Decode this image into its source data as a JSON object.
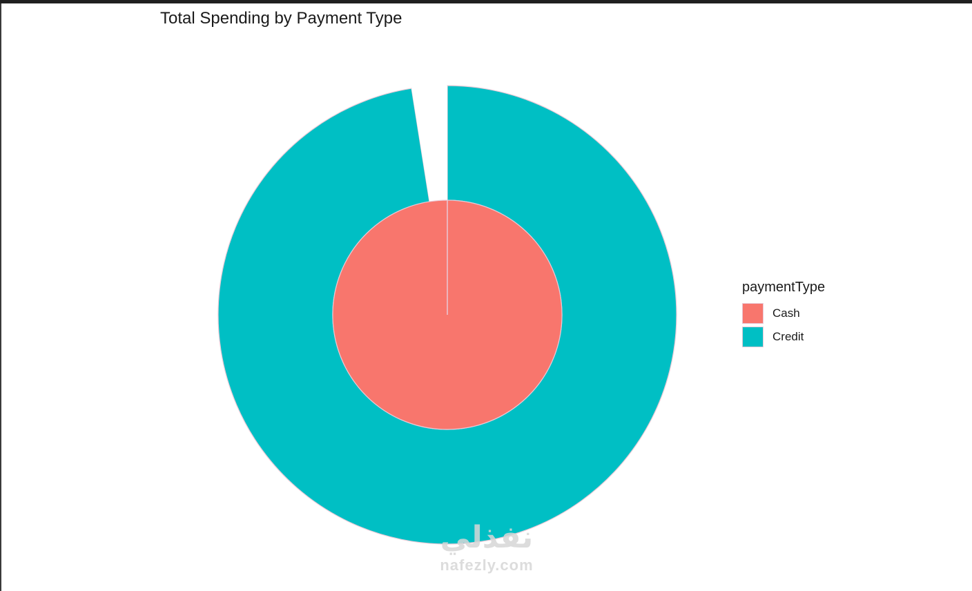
{
  "chart_data": {
    "type": "pie",
    "title": "Total Spending by Payment Type",
    "style": "nested donut (outer ring and inner pie)",
    "legend": {
      "title": "paymentType",
      "placement": "right",
      "entries": [
        {
          "label": "Cash",
          "color": "#F8766D"
        },
        {
          "label": "Credit",
          "color": "#00BFC4"
        }
      ]
    },
    "series": [
      {
        "ring": "outer",
        "slices": [
          {
            "label": "Credit",
            "value": 97.5,
            "color": "#00BFC4"
          },
          {
            "label": "",
            "value": 2.5,
            "color": "#FFFFFF"
          }
        ]
      },
      {
        "ring": "inner",
        "slices": [
          {
            "label": "Cash",
            "value": 100,
            "color": "#F8766D"
          }
        ]
      }
    ],
    "slice_border_color": "#E8C9D6"
  },
  "watermark": {
    "arabic": "نفذلي",
    "latin": "nafezly.com"
  }
}
